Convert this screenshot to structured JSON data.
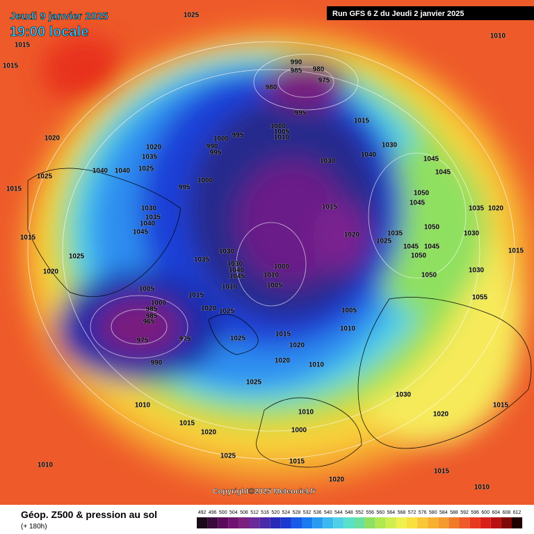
{
  "header": {
    "date": "Jeudi 9 janvier 2025",
    "time": "19:00 locale",
    "run": "Run GFS 6 Z du Jeudi 2 janvier 2025"
  },
  "copyright": "Copyright©2025 Meteociel.fr",
  "footer": {
    "title": "Géop. Z500 & pression au sol",
    "lead": "(+ 180h)"
  },
  "scale": [
    492,
    496,
    500,
    504,
    508,
    512,
    516,
    520,
    524,
    528,
    532,
    536,
    540,
    544,
    548,
    552,
    556,
    560,
    564,
    568,
    572,
    576,
    580,
    584,
    588,
    592,
    596,
    600,
    604,
    608,
    612
  ],
  "pressure_labels": [
    1025,
    1010,
    1015,
    1015,
    990,
    985,
    980,
    975,
    980,
    995,
    1015,
    1000,
    1005,
    1010,
    995,
    1000,
    990,
    995,
    1020,
    1020,
    1030,
    1040,
    1030,
    1035,
    1040,
    1040,
    1025,
    1025,
    1045,
    1045,
    1000,
    995,
    1015,
    1050,
    1045,
    1015,
    1030,
    1035,
    1020,
    1035,
    1040,
    1050,
    1045,
    1030,
    1020,
    1035,
    1025,
    1015,
    1045,
    1045,
    1030,
    1050,
    1025,
    1035,
    1015,
    1030,
    1040,
    1000,
    1045,
    1010,
    1030,
    1050,
    1020,
    1005,
    1010,
    1005,
    1015,
    1000,
    1055,
    1020,
    1025,
    1005,
    985,
    985,
    965,
    975,
    975,
    1025,
    1015,
    1010,
    1020,
    1020,
    1010,
    990,
    1025,
    1030,
    1010,
    1015,
    1015,
    1020,
    1010,
    1020,
    1000,
    1025,
    1010,
    1015,
    1015,
    1020,
    1010
  ]
}
